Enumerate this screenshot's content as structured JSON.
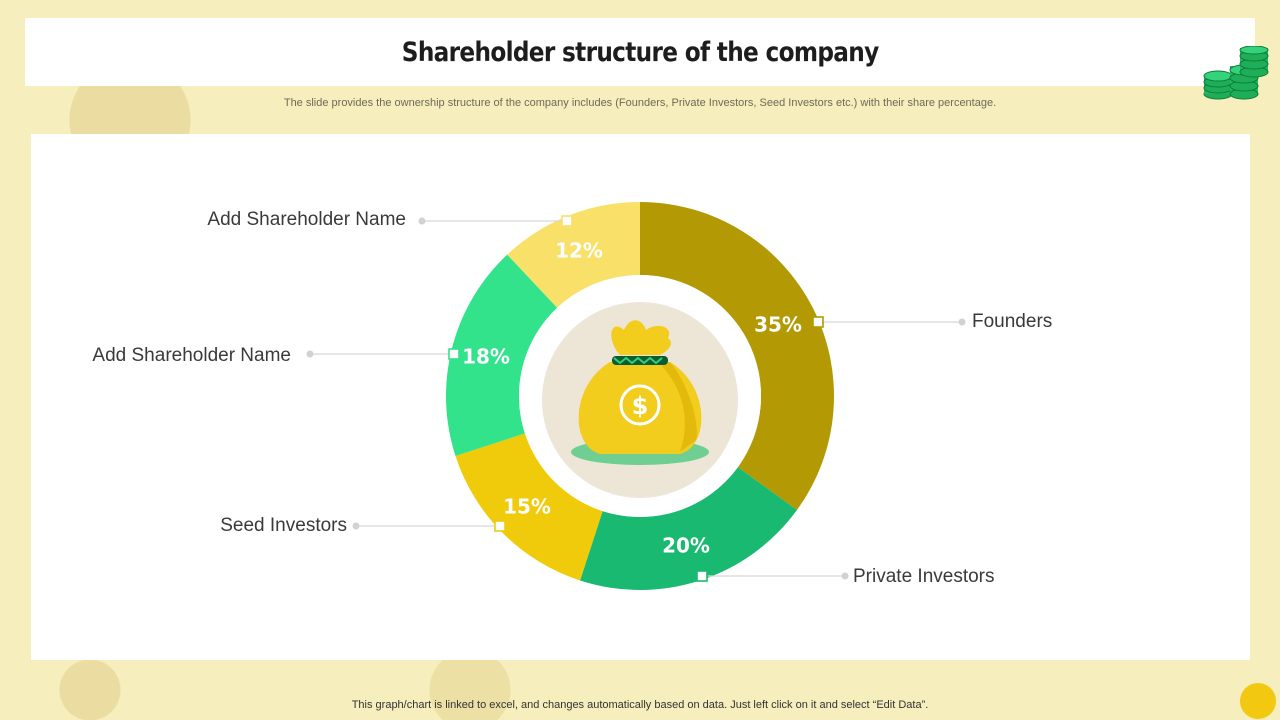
{
  "title": "Shareholder structure of the company",
  "subtitle": "The slide provides the ownership structure of the  company includes (Founders, Private Investors, Seed  Investors etc.) with their share percentage.",
  "footer": "This graph/chart is linked to excel, and changes automatically based on data. Just left click on it and select “Edit Data”.",
  "icons": {
    "center": "money-bag-icon",
    "corner": "coin-stacks-icon"
  },
  "colors": {
    "background": "#f6eebc",
    "bag": "#f2cd1d",
    "bag_circle": "#ede6d7",
    "leader_line": "#d7d7d7"
  },
  "chart_data": {
    "type": "pie",
    "variant": "donut",
    "unit": "%",
    "slices": [
      {
        "label": "Founders",
        "value": 35,
        "display": "35%",
        "color": "#b39a04"
      },
      {
        "label": "Private Investors",
        "value": 20,
        "display": "20%",
        "color": "#1ab971"
      },
      {
        "label": "Seed Investors",
        "value": 15,
        "display": "15%",
        "color": "#f0cb0b"
      },
      {
        "label": "Add Shareholder Name",
        "value": 18,
        "display": "18%",
        "color": "#32e38c"
      },
      {
        "label": "Add Shareholder Name",
        "value": 12,
        "display": "12%",
        "color": "#f9e068"
      }
    ]
  }
}
